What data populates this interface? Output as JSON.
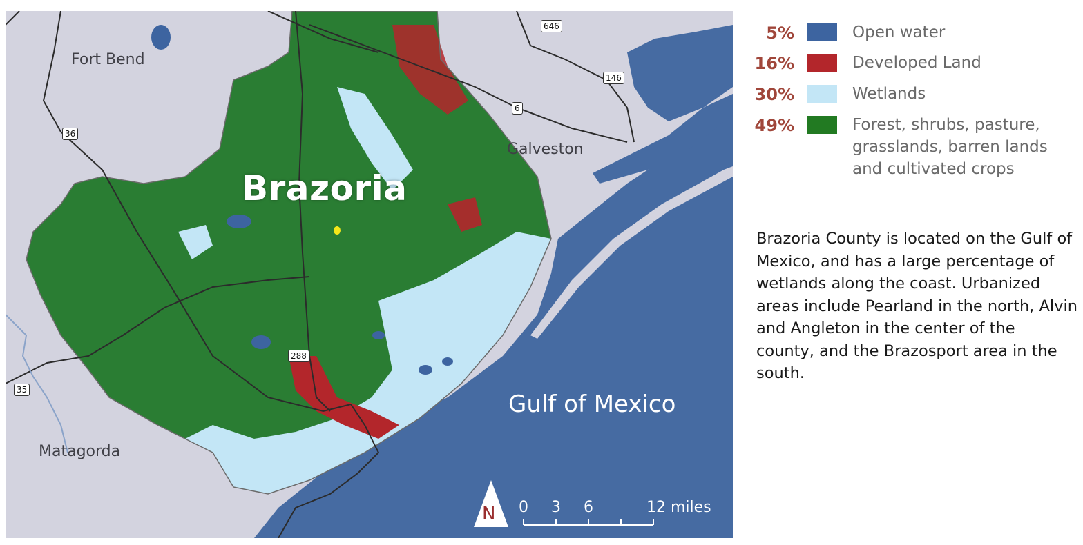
{
  "map": {
    "county_label": "Brazoria",
    "neighbor_labels": {
      "fort_bend": "Fort Bend",
      "galveston": "Galveston",
      "matagorda": "Matagorda"
    },
    "water_label": "Gulf of Mexico",
    "highway_shields": {
      "h646": "646",
      "h146": "146",
      "h6": "6",
      "h36": "36",
      "h288": "288",
      "h35": "35"
    },
    "north_arrow": "N",
    "scale_bar": {
      "ticks": [
        "0",
        "3",
        "6",
        "12 miles"
      ]
    }
  },
  "legend": {
    "items": [
      {
        "pct": "5%",
        "label": "Open water",
        "color": "#3d64a0"
      },
      {
        "pct": "16%",
        "label": "Developed Land",
        "color": "#b3262b"
      },
      {
        "pct": "30%",
        "label": "Wetlands",
        "color": "#c3e6f6"
      },
      {
        "pct": "49%",
        "label": "Forest, shrubs, pasture, grasslands, barren lands and cultivated crops",
        "color": "#227a22"
      }
    ]
  },
  "description": "Brazoria County is located on the Gulf of Mexico, and has a large percentage of wetlands along the coast. Urbanized areas include Pearland in the north, Alvin and Angleton in the center of the county, and the Brazosport area in the south.",
  "colors": {
    "land": "#d3d3df",
    "gulf": "#466ba2",
    "forest": "#2a7d33",
    "wetland": "#c3e6f6",
    "developed": "#b3262b",
    "water": "#3d64a0"
  }
}
